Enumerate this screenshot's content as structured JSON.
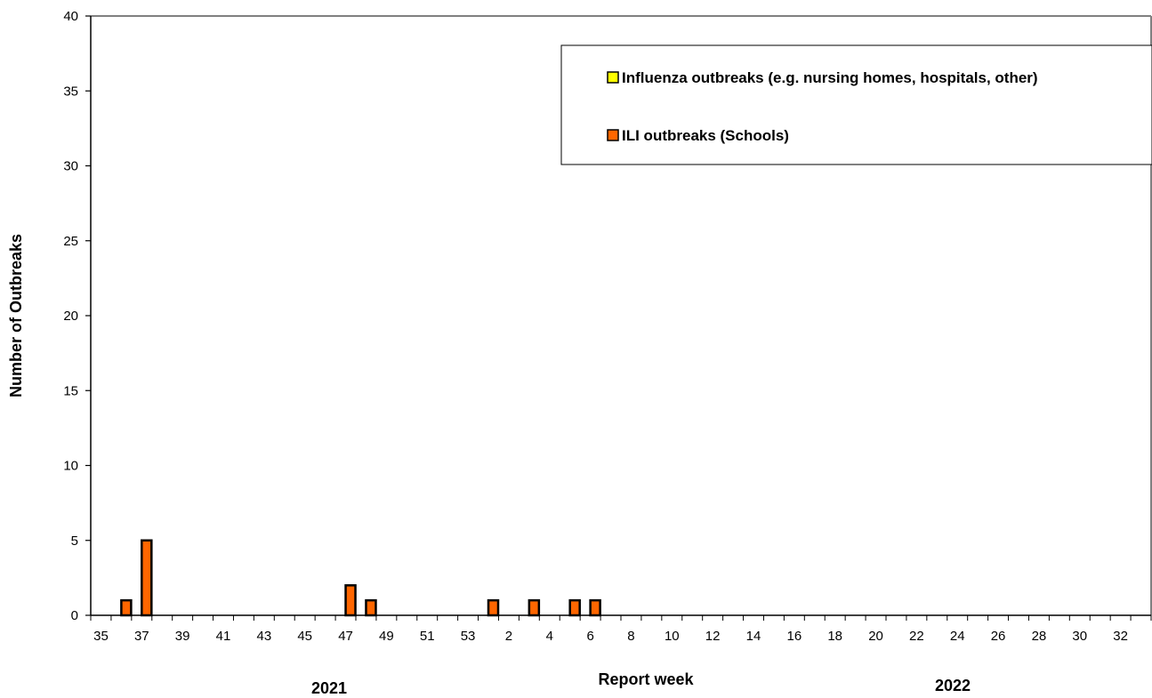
{
  "chart_data": {
    "type": "bar",
    "xlabel": "Report week",
    "ylabel": "Number of Outbreaks",
    "ylim": [
      0,
      40
    ],
    "y_ticks": [
      0,
      5,
      10,
      15,
      20,
      25,
      30,
      35,
      40
    ],
    "grid": false,
    "legend_position": "top-right",
    "categories": [
      "35",
      "36",
      "37",
      "38",
      "39",
      "40",
      "41",
      "42",
      "43",
      "44",
      "45",
      "46",
      "47",
      "48",
      "49",
      "50",
      "51",
      "52",
      "53",
      "1",
      "2",
      "3",
      "4",
      "5",
      "6",
      "7",
      "8",
      "9",
      "10",
      "11",
      "12",
      "13",
      "14",
      "15",
      "16",
      "17",
      "18",
      "19",
      "20",
      "21",
      "22",
      "23",
      "24",
      "25",
      "26",
      "27",
      "28",
      "29",
      "30",
      "31",
      "32",
      "33"
    ],
    "x_tick_labels": [
      "35",
      "37",
      "39",
      "41",
      "43",
      "45",
      "47",
      "49",
      "51",
      "53",
      "2",
      "4",
      "6",
      "8",
      "10",
      "12",
      "14",
      "16",
      "18",
      "20",
      "22",
      "24",
      "26",
      "28",
      "30",
      "32"
    ],
    "year_labels": [
      "2021",
      "2022"
    ],
    "series": [
      {
        "name": "Influenza outbreaks (e.g. nursing homes, hospitals, other)",
        "color": "#ffff00",
        "values": [
          0,
          0,
          0,
          0,
          0,
          0,
          0,
          0,
          0,
          0,
          0,
          0,
          0,
          0,
          0,
          0,
          0,
          0,
          0,
          0,
          0,
          0,
          0,
          0,
          0,
          0,
          0,
          0,
          0,
          0,
          0,
          0,
          0,
          0,
          0,
          0,
          0,
          0,
          0,
          0,
          0,
          0,
          0,
          0,
          0,
          0,
          0,
          0,
          0,
          0,
          0,
          0
        ]
      },
      {
        "name": "ILI outbreaks (Schools)",
        "color": "#ff6600",
        "values": [
          0,
          1,
          5,
          0,
          0,
          0,
          0,
          0,
          0,
          0,
          0,
          0,
          2,
          1,
          0,
          0,
          0,
          0,
          0,
          1,
          0,
          1,
          0,
          1,
          1,
          0,
          0,
          0,
          0,
          0,
          0,
          0,
          0,
          0,
          0,
          0,
          0,
          0,
          0,
          0,
          0,
          0,
          0,
          0,
          0,
          0,
          0,
          0,
          0,
          0,
          0,
          0
        ]
      }
    ]
  }
}
